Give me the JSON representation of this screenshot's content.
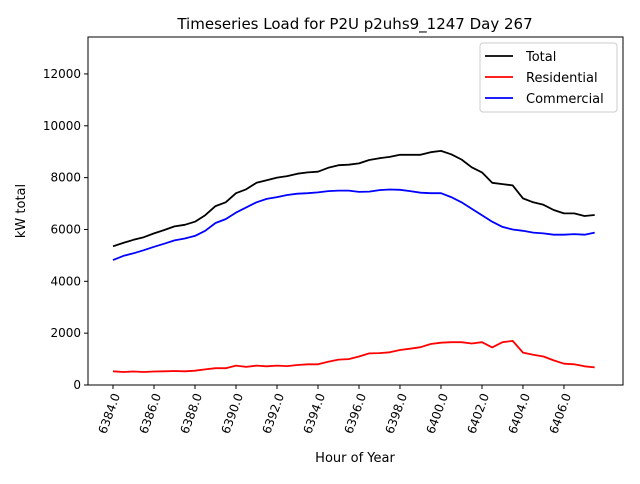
{
  "chart_data": {
    "type": "line",
    "title": "Timeseries Load for P2U p2uhs9_1247  Day 267",
    "xlabel": "Hour of Year",
    "ylabel": "kW total",
    "xlim": [
      6382.78,
      6408.88
    ],
    "ylim": [
      0,
      13425
    ],
    "xticks": [
      6384,
      6386,
      6388,
      6390,
      6392,
      6394,
      6396,
      6398,
      6400,
      6402,
      6404,
      6406
    ],
    "xtick_labels": [
      "6384.0",
      "6386.0",
      "6388.0",
      "6390.0",
      "6392.0",
      "6394.0",
      "6396.0",
      "6398.0",
      "6400.0",
      "6402.0",
      "6404.0",
      "6406.0"
    ],
    "yticks": [
      0,
      2000,
      4000,
      6000,
      8000,
      10000,
      12000
    ],
    "ytick_labels": [
      "0",
      "2000",
      "4000",
      "6000",
      "8000",
      "10000",
      "12000"
    ],
    "legend_position": "top-right",
    "grid": false,
    "x_start": 6384.0,
    "x_step": 0.5,
    "series": [
      {
        "name": "Total",
        "color": "#000000",
        "values": [
          5350,
          5480,
          5600,
          5700,
          5850,
          5980,
          6120,
          6180,
          6300,
          6550,
          6900,
          7050,
          7400,
          7550,
          7800,
          7900,
          8000,
          8060,
          8150,
          8200,
          8230,
          8380,
          8480,
          8500,
          8550,
          8680,
          8750,
          8800,
          8880,
          8880,
          8880,
          8980,
          9030,
          8900,
          8700,
          8400,
          8200,
          7800,
          7750,
          7700,
          7200,
          7050,
          6950,
          6750,
          6620,
          6620,
          6520,
          6560
        ]
      },
      {
        "name": "Residential",
        "color": "#ff0000",
        "values": [
          530,
          500,
          520,
          500,
          520,
          530,
          540,
          530,
          550,
          600,
          650,
          650,
          750,
          700,
          750,
          720,
          750,
          730,
          770,
          800,
          800,
          900,
          980,
          1000,
          1100,
          1220,
          1230,
          1260,
          1350,
          1400,
          1460,
          1580,
          1630,
          1650,
          1650,
          1600,
          1650,
          1450,
          1650,
          1700,
          1250,
          1170,
          1100,
          950,
          820,
          800,
          720,
          680
        ]
      },
      {
        "name": "Commercial",
        "color": "#0000ff",
        "values": [
          4820,
          4980,
          5080,
          5200,
          5330,
          5450,
          5580,
          5650,
          5750,
          5950,
          6250,
          6400,
          6650,
          6850,
          7050,
          7180,
          7250,
          7330,
          7380,
          7400,
          7430,
          7480,
          7500,
          7500,
          7450,
          7460,
          7520,
          7540,
          7530,
          7480,
          7420,
          7400,
          7400,
          7250,
          7050,
          6800,
          6550,
          6300,
          6100,
          6000,
          5950,
          5880,
          5850,
          5800,
          5800,
          5820,
          5800,
          5880
        ]
      }
    ]
  }
}
